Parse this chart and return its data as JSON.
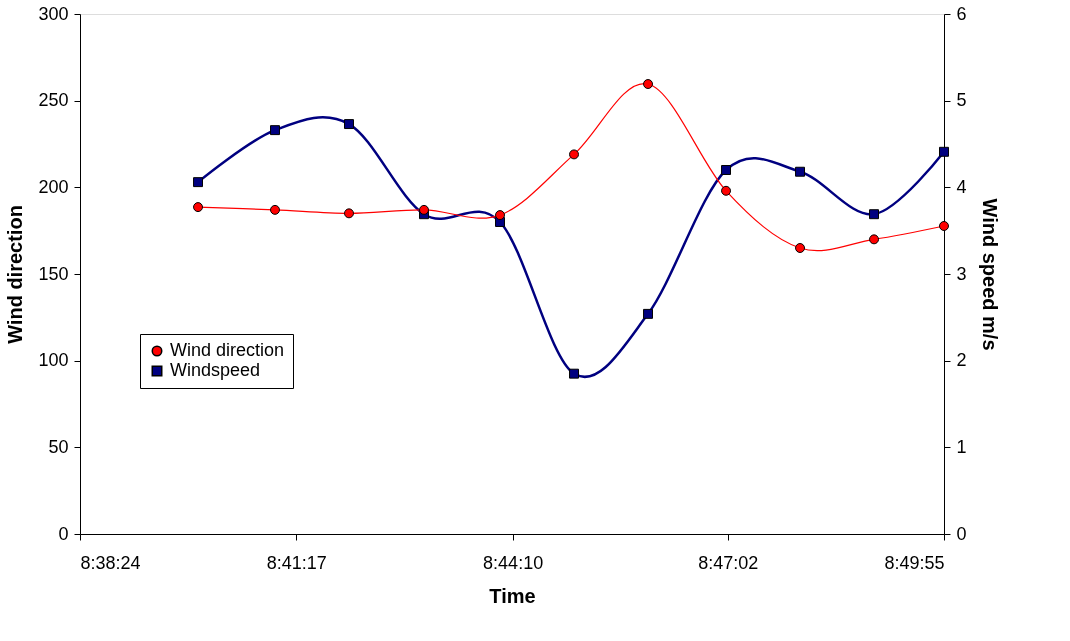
{
  "chart_data": {
    "type": "line",
    "xlabel": "Time",
    "ylabel": "Wind direction",
    "y2label": "Wind speed m/s",
    "xlim": [
      8.64,
      8.831944
    ],
    "xticks": [
      {
        "value": 8.64,
        "label": "8:38:24"
      },
      {
        "value": 8.688056,
        "label": "8:41:17"
      },
      {
        "value": 8.736111,
        "label": "8:44:10"
      },
      {
        "value": 8.783889,
        "label": "8:47:02"
      },
      {
        "value": 8.831944,
        "label": "8:49:55"
      }
    ],
    "ylim": [
      0,
      300
    ],
    "yticks": [
      0,
      50,
      100,
      150,
      200,
      250,
      300
    ],
    "y2lim": [
      0,
      6
    ],
    "y2ticks": [
      0,
      1,
      2,
      3,
      4,
      5,
      6
    ],
    "legend": "left",
    "grid": false,
    "series": [
      {
        "name": "Wind direction",
        "color": "#ff0000",
        "marker": "circle",
        "x": [
          8.66622,
          8.68332,
          8.69976,
          8.71642,
          8.73331,
          8.74975,
          8.76619,
          8.78352,
          8.79996,
          8.8164,
          8.831944
        ],
        "values": [
          188.6,
          187,
          185,
          187,
          184,
          219,
          259.6,
          198,
          165,
          170,
          177.7
        ]
      },
      {
        "name": "Windspeed",
        "color": "#000080",
        "marker": "square",
        "axis": "y2",
        "x": [
          8.66622,
          8.68332,
          8.69976,
          8.71642,
          8.73331,
          8.74975,
          8.76619,
          8.78352,
          8.79996,
          8.8164,
          8.831944
        ],
        "values": [
          4.06,
          4.66,
          4.73,
          3.69,
          3.6,
          1.85,
          2.54,
          4.2,
          4.18,
          3.69,
          4.41
        ]
      }
    ]
  }
}
